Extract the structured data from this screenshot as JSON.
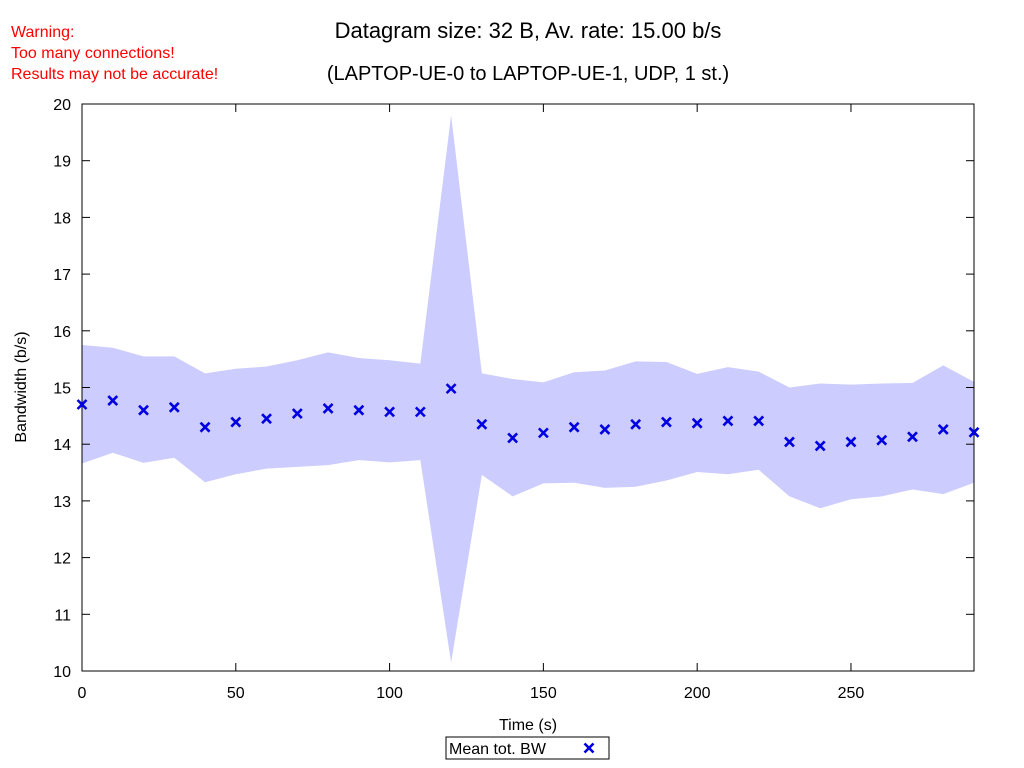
{
  "warning": {
    "line1": "Warning:",
    "line2": "Too many connections!",
    "line3": "Results may not be accurate!",
    "color": "#ff0000"
  },
  "chart_data": {
    "type": "scatter",
    "title": "Datagram size: 32 B, Av. rate: 15.00 b/s",
    "subtitle": "(LAPTOP-UE-0 to LAPTOP-UE-1, UDP, 1 st.)",
    "xlabel": "Time (s)",
    "ylabel": "Bandwidth (b/s)",
    "xlim": [
      0,
      290
    ],
    "ylim": [
      10,
      20
    ],
    "x_ticks": [
      0,
      50,
      100,
      150,
      200,
      250
    ],
    "y_ticks": [
      10,
      11,
      12,
      13,
      14,
      15,
      16,
      17,
      18,
      19,
      20
    ],
    "grid": false,
    "legend_position": "bottom-center",
    "series": [
      {
        "name": "Mean tot. BW",
        "marker": "x",
        "color": "#0000e0",
        "x": [
          0,
          10,
          20,
          30,
          40,
          50,
          60,
          70,
          80,
          90,
          100,
          110,
          120,
          130,
          140,
          150,
          160,
          170,
          180,
          190,
          200,
          210,
          220,
          230,
          240,
          250,
          260,
          270,
          280,
          290
        ],
        "y": [
          14.7,
          14.77,
          14.6,
          14.65,
          14.3,
          14.39,
          14.45,
          14.54,
          14.63,
          14.6,
          14.57,
          14.57,
          14.98,
          14.35,
          14.11,
          14.2,
          14.3,
          14.26,
          14.35,
          14.39,
          14.37,
          14.41,
          14.41,
          14.04,
          13.97,
          14.04,
          14.07,
          14.13,
          14.26,
          14.21
        ]
      }
    ],
    "band": {
      "color": "#ccccff",
      "x": [
        0,
        10,
        20,
        30,
        40,
        50,
        60,
        70,
        80,
        90,
        100,
        110,
        120,
        130,
        140,
        150,
        160,
        170,
        180,
        190,
        200,
        210,
        220,
        230,
        240,
        250,
        260,
        270,
        280,
        290
      ],
      "upper": [
        15.75,
        15.7,
        15.55,
        15.55,
        15.25,
        15.33,
        15.37,
        15.48,
        15.62,
        15.52,
        15.48,
        15.42,
        19.8,
        15.25,
        15.15,
        15.09,
        15.27,
        15.3,
        15.46,
        15.45,
        15.24,
        15.36,
        15.28,
        15.0,
        15.07,
        15.05,
        15.07,
        15.08,
        15.39,
        15.1
      ],
      "lower": [
        13.66,
        13.85,
        13.67,
        13.76,
        13.33,
        13.47,
        13.57,
        13.6,
        13.63,
        13.72,
        13.68,
        13.72,
        10.15,
        13.46,
        13.08,
        13.31,
        13.32,
        13.23,
        13.25,
        13.36,
        13.51,
        13.47,
        13.55,
        13.08,
        12.87,
        13.03,
        13.08,
        13.2,
        13.12,
        13.32
      ]
    }
  }
}
